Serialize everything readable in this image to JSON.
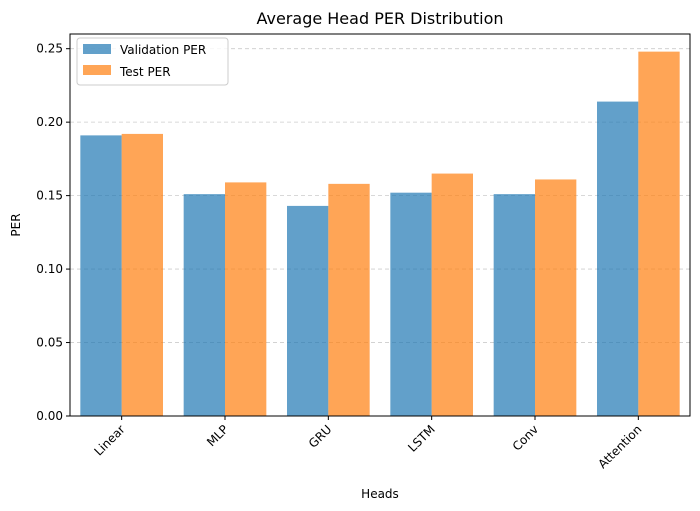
{
  "chart_data": {
    "type": "bar",
    "title": "Average Head PER Distribution",
    "xlabel": "Heads",
    "ylabel": "PER",
    "categories": [
      "Linear",
      "MLP",
      "GRU",
      "LSTM",
      "Conv",
      "Attention"
    ],
    "series": [
      {
        "name": "Validation PER",
        "color": "#1f77b4",
        "values": [
          0.191,
          0.151,
          0.143,
          0.152,
          0.151,
          0.214
        ]
      },
      {
        "name": "Test PER",
        "color": "#ff7f0e",
        "values": [
          0.192,
          0.159,
          0.158,
          0.165,
          0.161,
          0.248
        ]
      }
    ],
    "ylim": [
      0,
      0.26
    ],
    "yticks": [
      "0.00",
      "0.05",
      "0.10",
      "0.15",
      "0.20",
      "0.25"
    ],
    "grid": "y-dashed",
    "legend": "top-left"
  }
}
